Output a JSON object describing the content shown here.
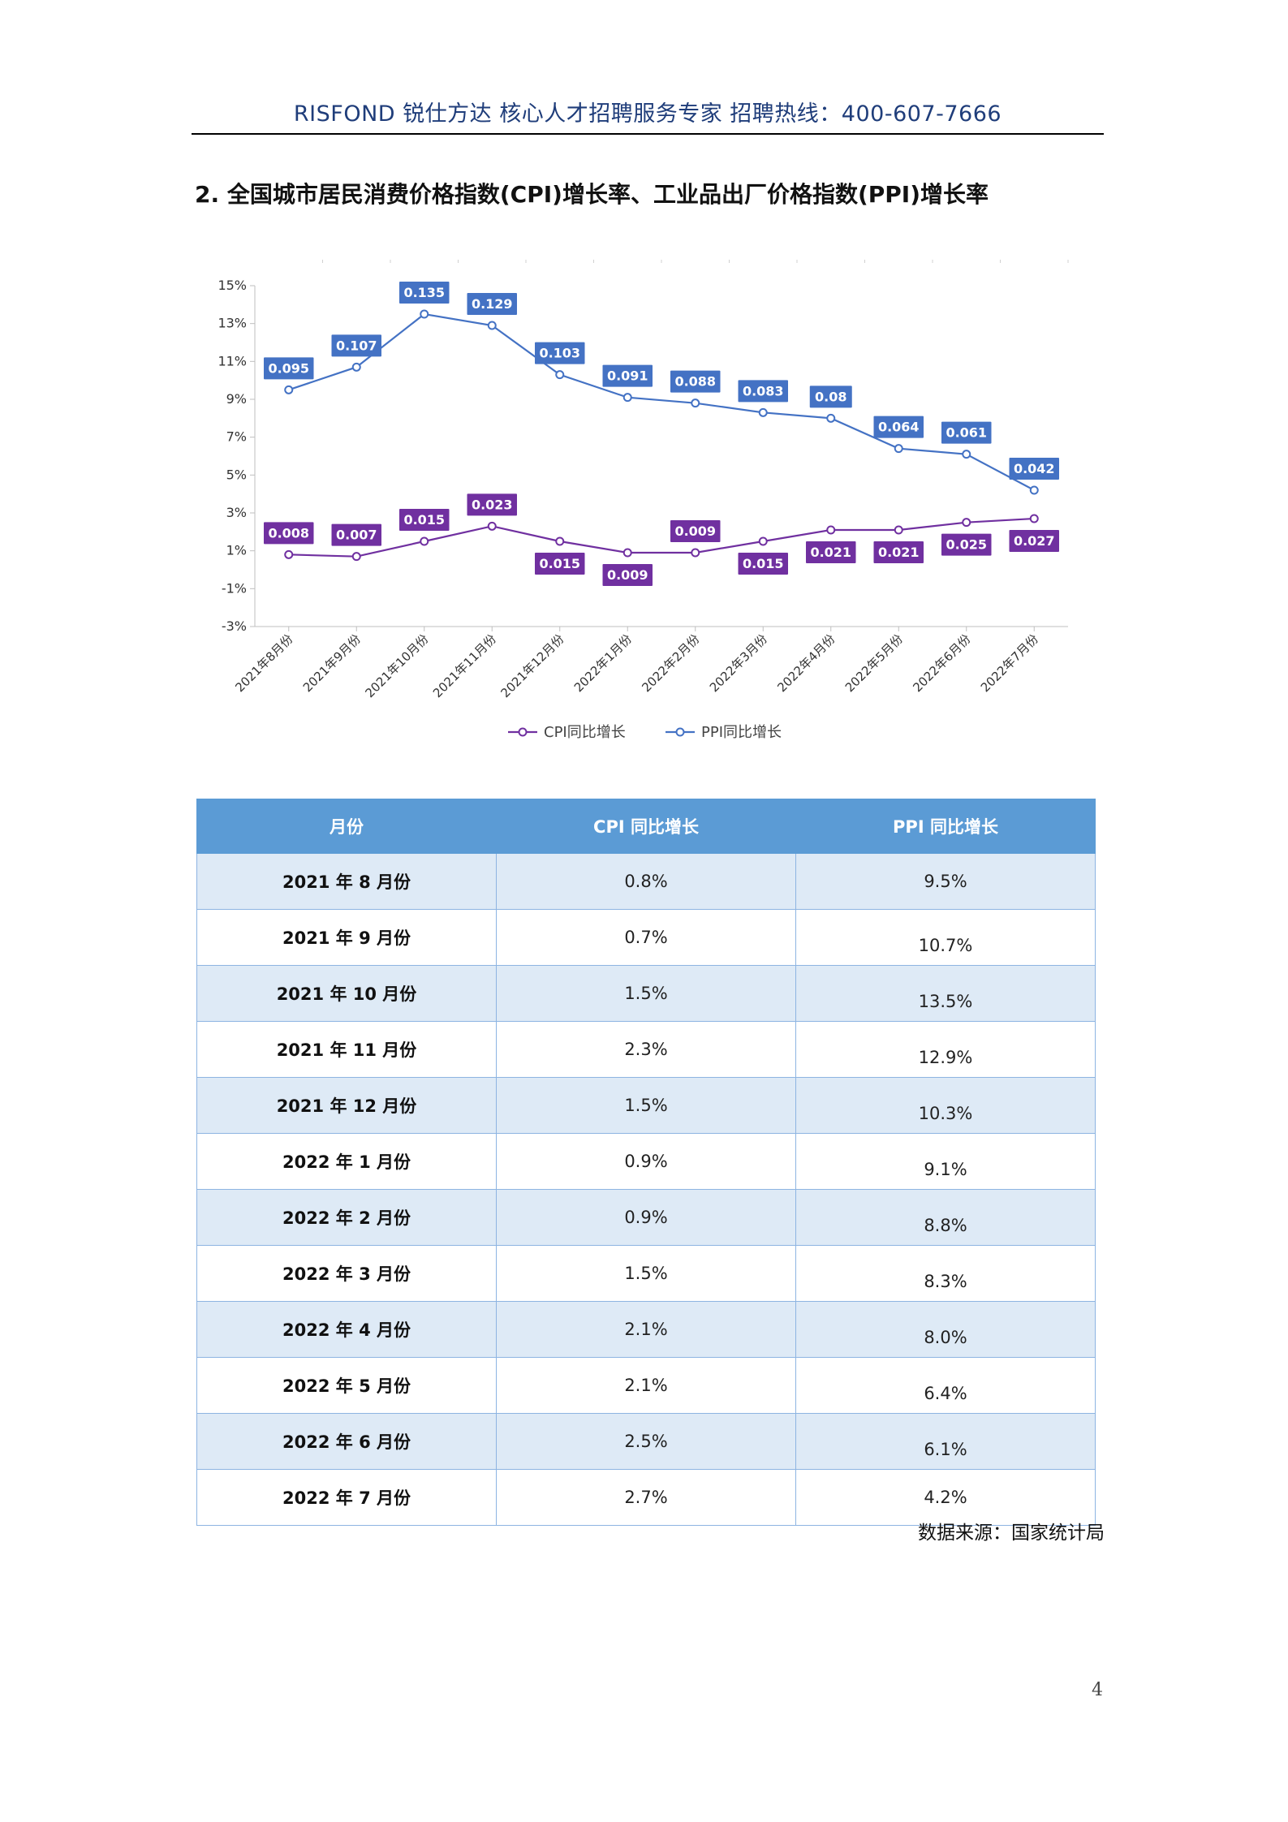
{
  "header": {
    "text": "RISFOND 锐仕方达  核心人才招聘服务专家    招聘热线：400-607-7666"
  },
  "section": {
    "title": "2. 全国城市居民消费价格指数(CPI)增长率、工业品出厂价格指数(PPI)增长率"
  },
  "colors": {
    "cpi": "#7030a0",
    "ppi": "#4472c4",
    "table_header": "#5b9bd5",
    "table_odd_row": "#deeaf6"
  },
  "chart_data": {
    "type": "line",
    "title": "",
    "categories": [
      "2021年8月份",
      "2021年9月份",
      "2021年10月份",
      "2021年11月份",
      "2021年12月份",
      "2022年1月份",
      "2022年2月份",
      "2022年3月份",
      "2022年4月份",
      "2022年5月份",
      "2022年6月份",
      "2022年7月份"
    ],
    "series": [
      {
        "name": "CPI同比增长",
        "values": [
          0.008,
          0.007,
          0.015,
          0.023,
          0.015,
          0.009,
          0.009,
          0.015,
          0.021,
          0.021,
          0.025,
          0.027
        ],
        "labels": [
          "0.008",
          "0.007",
          "0.015",
          "0.023",
          "0.015",
          "0.009",
          "0.009",
          "0.015",
          "0.021",
          "0.021",
          "0.025",
          "0.027"
        ]
      },
      {
        "name": "PPI同比增长",
        "values": [
          0.095,
          0.107,
          0.135,
          0.129,
          0.103,
          0.091,
          0.088,
          0.083,
          0.08,
          0.064,
          0.061,
          0.042
        ],
        "labels": [
          "0.095",
          "0.107",
          "0.135",
          "0.129",
          "0.103",
          "0.091",
          "0.088",
          "0.083",
          "0.08",
          "0.064",
          "0.061",
          "0.042"
        ]
      }
    ],
    "ylim": [
      -0.03,
      0.15
    ],
    "yticks": [
      -0.03,
      -0.01,
      0.01,
      0.03,
      0.05,
      0.07,
      0.09,
      0.11,
      0.13,
      0.15
    ],
    "ytick_labels": [
      "-3%",
      "-1%",
      "1%",
      "3%",
      "5%",
      "7%",
      "9%",
      "11%",
      "13%",
      "15%"
    ],
    "legend_position": "bottom-center"
  },
  "table": {
    "headers": [
      "月份",
      "CPI 同比增长",
      "PPI 同比增长"
    ],
    "rows": [
      [
        "2021 年 8 月份",
        "0.8%",
        "9.5%"
      ],
      [
        "2021 年 9 月份",
        "0.7%",
        "10.7%"
      ],
      [
        "2021 年 10 月份",
        "1.5%",
        "13.5%"
      ],
      [
        "2021 年 11 月份",
        "2.3%",
        "12.9%"
      ],
      [
        "2021 年 12 月份",
        "1.5%",
        "10.3%"
      ],
      [
        "2022 年 1 月份",
        "0.9%",
        "9.1%"
      ],
      [
        "2022 年 2 月份",
        "0.9%",
        "8.8%"
      ],
      [
        "2022 年 3 月份",
        "1.5%",
        "8.3%"
      ],
      [
        "2022 年 4 月份",
        "2.1%",
        "8.0%"
      ],
      [
        "2022 年 5 月份",
        "2.1%",
        "6.4%"
      ],
      [
        "2022 年 6 月份",
        "2.5%",
        "6.1%"
      ],
      [
        "2022 年 7 月份",
        "2.7%",
        "4.2%"
      ]
    ]
  },
  "source": {
    "text": "数据来源：国家统计局"
  },
  "page": {
    "number": "4"
  }
}
